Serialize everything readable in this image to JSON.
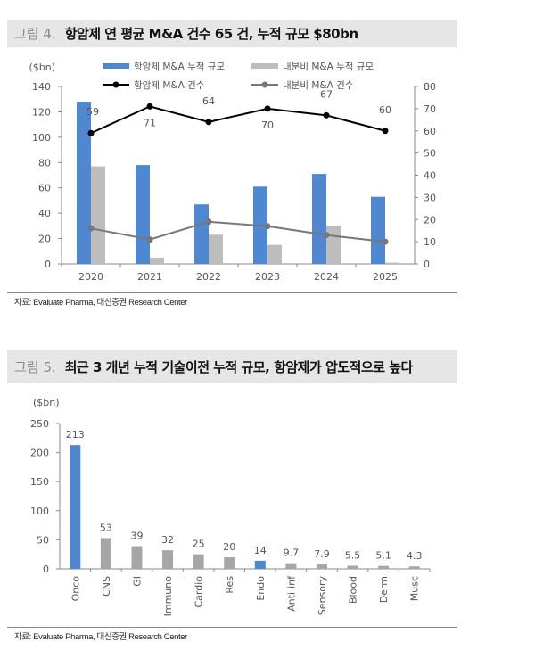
{
  "figure4": {
    "number": "그림 4.",
    "title": "항암제 연 평균 M&A 건수 65 건, 누적 규모 $80bn",
    "source": "자료: Evaluate Pharma, 대신증권 Research Center"
  },
  "figure5": {
    "number": "그림 5.",
    "title": "최근 3 개년 누적 기술이전 누적 규모, 항암제가 압도적으로 높다",
    "source": "자료: Evaluate Pharma, 대신증권 Research Center"
  },
  "chart_data": [
    {
      "type": "bar+line",
      "categories": [
        "2020",
        "2021",
        "2022",
        "2023",
        "2024",
        "2025"
      ],
      "ylabel": "($bn)",
      "ylim": [
        0,
        140
      ],
      "yticks": [
        0,
        20,
        40,
        60,
        80,
        100,
        120,
        140
      ],
      "y2lim": [
        0,
        80
      ],
      "y2ticks": [
        0,
        10,
        20,
        30,
        40,
        50,
        60,
        70,
        80
      ],
      "legend": "top",
      "series": [
        {
          "name": "항암제 M&A 누적 규모",
          "kind": "bar",
          "axis": "left",
          "color": "#4f87d1",
          "values": [
            128,
            78,
            47,
            61,
            71,
            53
          ]
        },
        {
          "name": "내분비 M&A 누적 규모",
          "kind": "bar",
          "axis": "left",
          "color": "#bdbdbd",
          "values": [
            77,
            5,
            23,
            15,
            30,
            1
          ]
        },
        {
          "name": "항암제 M&A 건수",
          "kind": "line",
          "axis": "right",
          "color": "#000000",
          "values": [
            59,
            71,
            64,
            70,
            67,
            60
          ],
          "labels": [
            "59",
            "71",
            "64",
            "70",
            "67",
            "60"
          ]
        },
        {
          "name": "내분비 M&A 건수",
          "kind": "line",
          "axis": "right",
          "color": "#777777",
          "values": [
            16,
            11,
            19,
            17,
            13,
            10
          ]
        }
      ]
    },
    {
      "type": "bar",
      "categories": [
        "Onco",
        "CNS",
        "GI",
        "Immuno",
        "Cardio",
        "Res",
        "Endo",
        "Anti-inf",
        "Sensory",
        "Blood",
        "Derm",
        "Musc"
      ],
      "values": [
        213,
        53,
        39,
        32,
        25,
        20,
        14,
        9.7,
        7.9,
        5.5,
        5.1,
        4.3
      ],
      "labels": [
        "213",
        "53",
        "39",
        "32",
        "25",
        "20",
        "14",
        "9.7",
        "7.9",
        "5.5",
        "5.1",
        "4.3"
      ],
      "highlight": [
        "Onco",
        "Endo"
      ],
      "colors": {
        "highlight": "#4f87d1",
        "default": "#a6a6a6"
      },
      "ylabel": "($bn)",
      "ylim": [
        0,
        250
      ],
      "yticks": [
        0,
        50,
        100,
        150,
        200,
        250
      ]
    }
  ]
}
